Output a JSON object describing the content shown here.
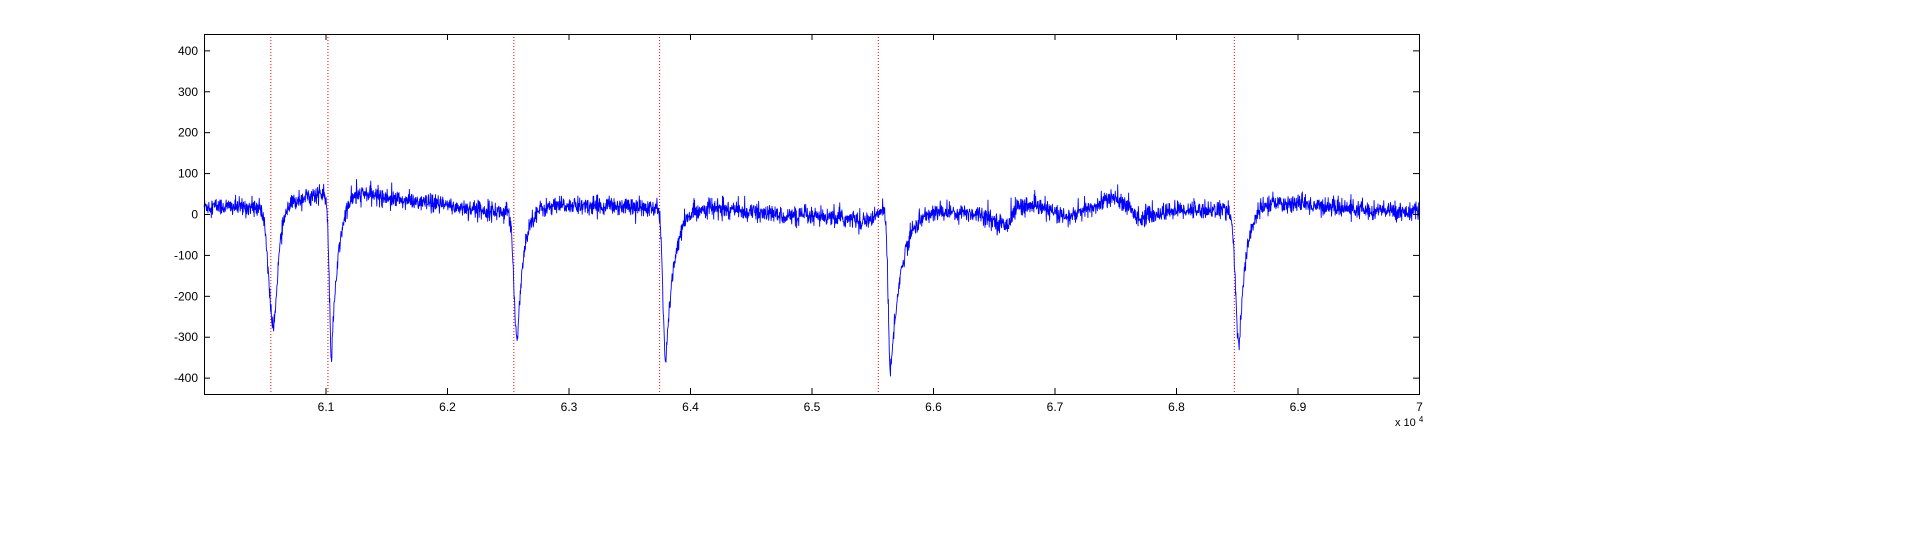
{
  "chart_data": {
    "type": "line",
    "title": "",
    "xlabel": "",
    "ylabel": "",
    "xlim": [
      60000,
      70000
    ],
    "ylim": [
      -440,
      440
    ],
    "x_ticks": [
      61000,
      62000,
      63000,
      64000,
      65000,
      66000,
      67000,
      68000,
      69000,
      70000
    ],
    "x_tick_labels": [
      "6.1",
      "6.2",
      "6.3",
      "6.4",
      "6.5",
      "6.6",
      "6.7",
      "6.8",
      "6.9",
      "7"
    ],
    "x_multiplier_base": "x 10",
    "x_multiplier_exponent": "4",
    "y_ticks": [
      -400,
      -300,
      -200,
      -100,
      0,
      100,
      200,
      300,
      400
    ],
    "y_tick_labels": [
      "-400",
      "-300",
      "-200",
      "-100",
      "0",
      "100",
      "200",
      "300",
      "400"
    ],
    "grid": false,
    "legend": "none",
    "series": [
      {
        "color": "#0000ff",
        "noise_amplitude": 18,
        "baseline": [
          [
            60000,
            20
          ],
          [
            60500,
            15
          ],
          [
            60550,
            -30
          ],
          [
            60650,
            30
          ],
          [
            60950,
            50
          ],
          [
            61020,
            40
          ],
          [
            61200,
            60
          ],
          [
            61600,
            35
          ],
          [
            62000,
            20
          ],
          [
            62450,
            5
          ],
          [
            62550,
            15
          ],
          [
            63000,
            20
          ],
          [
            63500,
            20
          ],
          [
            63700,
            10
          ],
          [
            63850,
            30
          ],
          [
            64200,
            15
          ],
          [
            64800,
            -5
          ],
          [
            65500,
            -15
          ],
          [
            65600,
            15
          ],
          [
            66000,
            10
          ],
          [
            66400,
            0
          ],
          [
            66600,
            -30
          ],
          [
            66700,
            20
          ],
          [
            66900,
            15
          ],
          [
            67100,
            -10
          ],
          [
            67350,
            20
          ],
          [
            67450,
            40
          ],
          [
            67550,
            30
          ],
          [
            67700,
            -10
          ],
          [
            68000,
            10
          ],
          [
            68450,
            10
          ],
          [
            68550,
            30
          ],
          [
            69000,
            25
          ],
          [
            69500,
            10
          ],
          [
            70000,
            5
          ]
        ],
        "spikes": [
          {
            "x": 60580,
            "min": -265,
            "fall": 60,
            "rise": 90
          },
          {
            "x": 61050,
            "min": -390,
            "fall": 25,
            "rise": 120
          },
          {
            "x": 62580,
            "min": -325,
            "fall": 40,
            "rise": 100
          },
          {
            "x": 63800,
            "min": -390,
            "fall": 30,
            "rise": 150
          },
          {
            "x": 65650,
            "min": -410,
            "fall": 25,
            "rise": 180
          },
          {
            "x": 68520,
            "min": -355,
            "fall": 40,
            "rise": 120
          }
        ]
      }
    ],
    "vlines": {
      "color": "#ff0000",
      "style": "dotted",
      "x": [
        60550,
        61020,
        62550,
        63750,
        65550,
        68480
      ]
    }
  }
}
